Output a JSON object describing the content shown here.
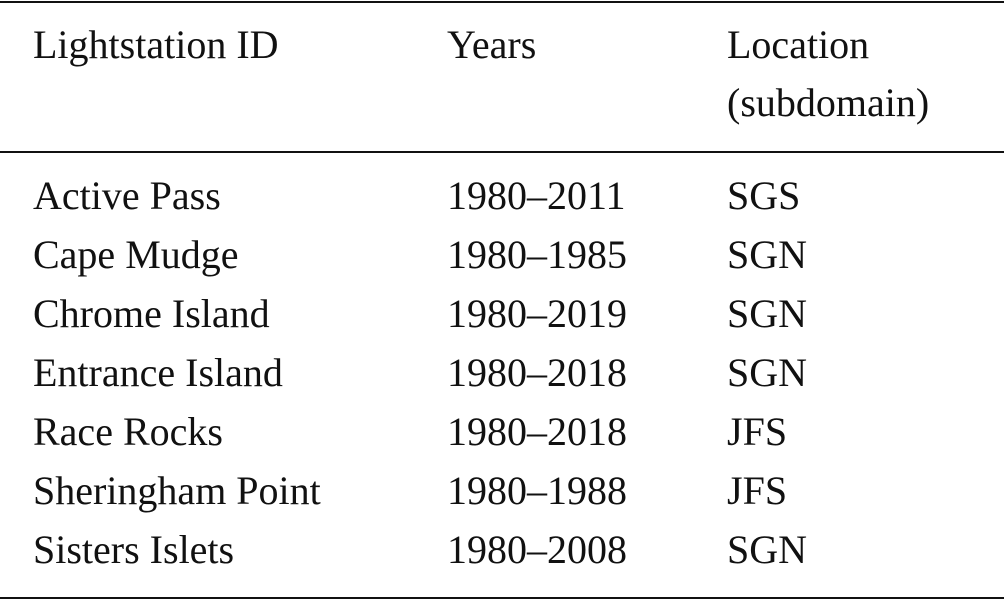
{
  "table": {
    "header": [
      "Lightstation ID",
      "Years",
      "Location (subdomain)"
    ],
    "rows": [
      [
        "Active Pass",
        "1980–2011",
        "SGS"
      ],
      [
        "Cape Mudge",
        "1980–1985",
        "SGN"
      ],
      [
        "Chrome Island",
        "1980–2019",
        "SGN"
      ],
      [
        "Entrance Island",
        "1980–2018",
        "SGN"
      ],
      [
        "Race Rocks",
        "1980–2018",
        "JFS"
      ],
      [
        "Sheringham Point",
        "1980–1988",
        "JFS"
      ],
      [
        "Sisters Islets",
        "1980–2008",
        "SGN"
      ]
    ]
  }
}
